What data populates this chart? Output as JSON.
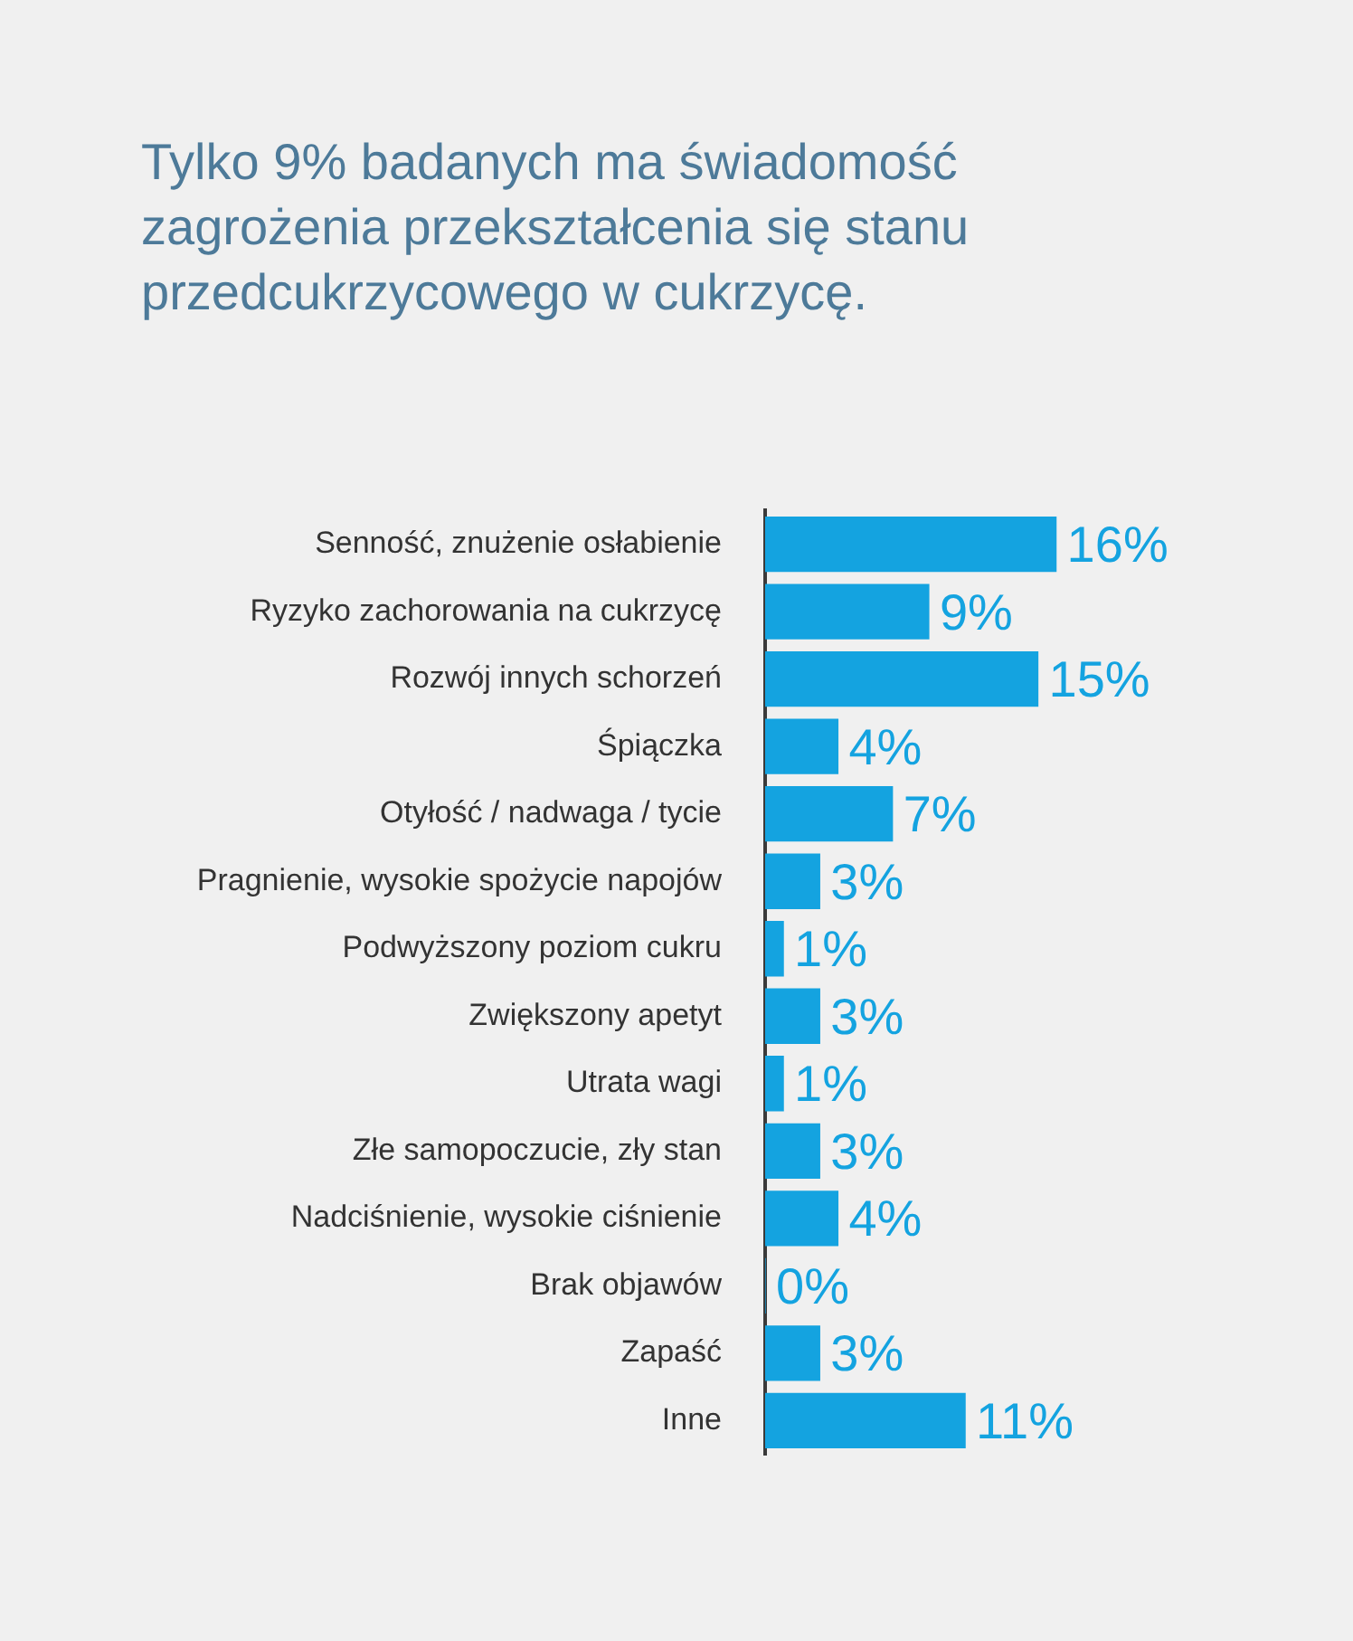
{
  "chart_data": {
    "type": "bar",
    "orientation": "horizontal",
    "title": "Tylko 9% badanych ma świadomość zagrożenia przekształcenia się stanu przedcukrzycowego w cukrzycę.",
    "categories": [
      "Senność, znużenie osłabienie",
      "Ryzyko zachorowania na cukrzycę",
      "Rozwój innych schorzeń",
      "Śpiączka",
      "Otyłość / nadwaga / tycie",
      "Pragnienie, wysokie spożycie napojów",
      "Podwyższony poziom cukru",
      "Zwiększony apetyt",
      "Utrata wagi",
      "Złe samopoczucie, zły stan",
      "Nadciśnienie, wysokie ciśnienie",
      "Brak objawów",
      "Zapaść",
      "Inne"
    ],
    "values": [
      16,
      9,
      15,
      4,
      7,
      3,
      1,
      3,
      1,
      3,
      4,
      0,
      3,
      11
    ],
    "value_labels": [
      "16%",
      "9%",
      "15%",
      "4%",
      "7%",
      "3%",
      "1%",
      "3%",
      "1%",
      "3%",
      "4%",
      "0%",
      "3%",
      "11%"
    ],
    "color": "#14a3e0",
    "legend": false,
    "tick_labels": "y"
  }
}
